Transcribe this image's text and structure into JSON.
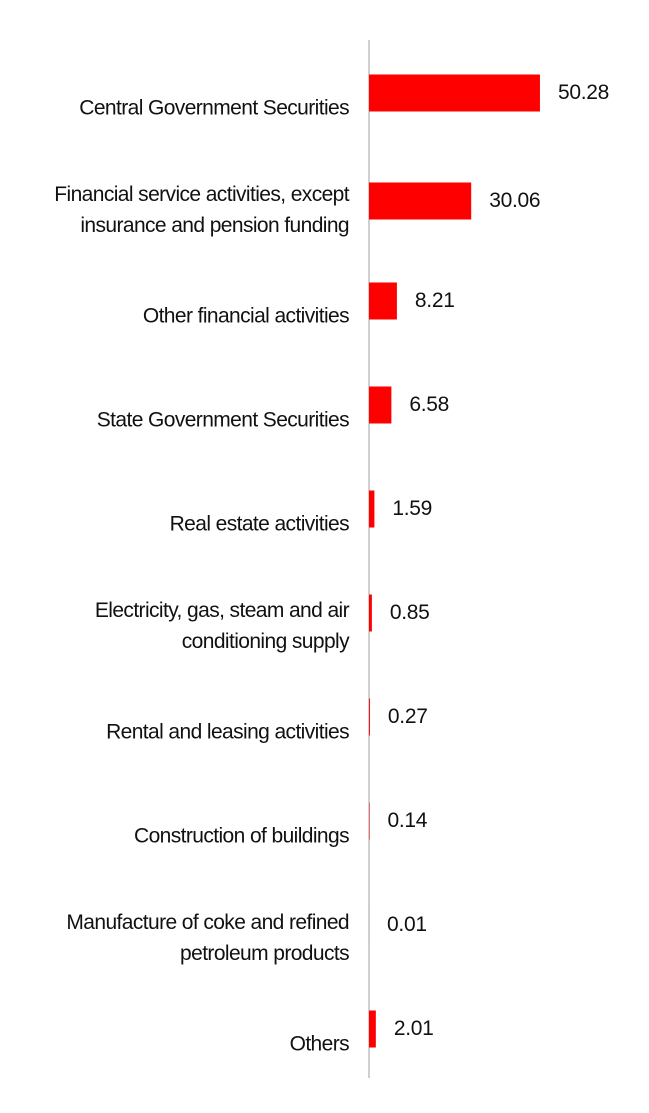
{
  "chart_data": {
    "type": "bar",
    "orientation": "horizontal",
    "color": "#ff0000",
    "categories": [
      "Central Government Securities",
      "Financial service activities, except insurance and pension funding",
      "Other financial activities",
      "State Government Securities",
      "Real estate activities",
      "Electricity, gas, steam and air conditioning supply",
      "Rental and leasing activities",
      "Construction of buildings",
      "Manufacture of coke and refined petroleum products",
      "Others"
    ],
    "values": [
      50.28,
      30.06,
      8.21,
      6.58,
      1.59,
      0.85,
      0.27,
      0.14,
      0.01,
      2.01
    ]
  }
}
